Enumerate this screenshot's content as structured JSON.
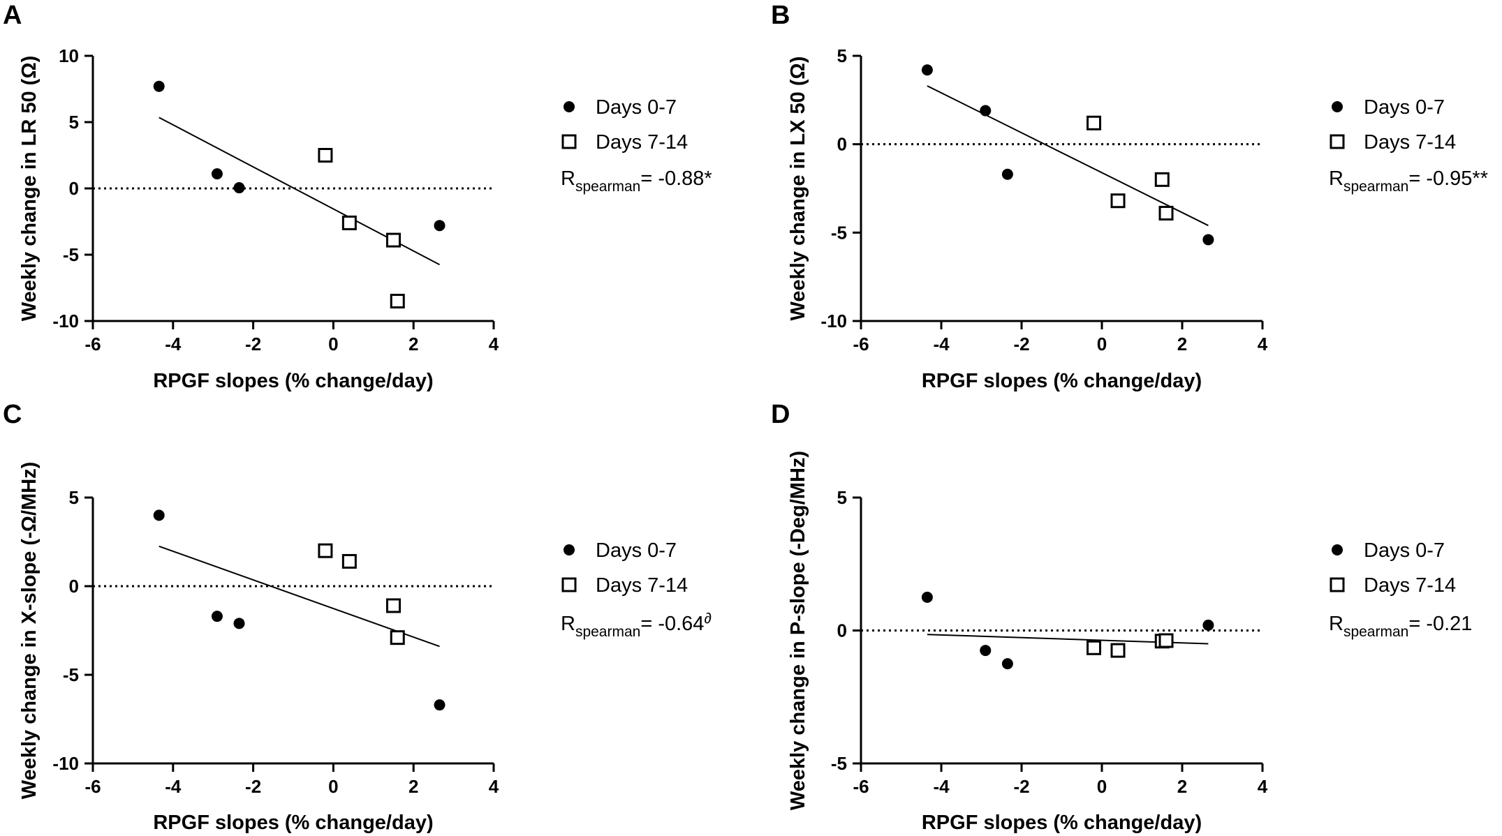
{
  "chart_data": [
    {
      "panel_label": "A",
      "type": "scatter",
      "xlabel": "RPGF slopes (% change/day)",
      "ylabel": "Weekly change in LR 50 (Ω)",
      "xlim": [
        -6,
        4
      ],
      "ylim": [
        -10,
        10
      ],
      "xticks": [
        -6,
        -4,
        -2,
        0,
        2,
        4
      ],
      "yticks": [
        -10,
        -5,
        0,
        5,
        10
      ],
      "series": [
        {
          "name": "Days 0-7",
          "marker": "filled-circle",
          "x": [
            -4.35,
            -2.9,
            -2.35,
            2.65
          ],
          "y": [
            7.7,
            1.1,
            0.05,
            -2.8
          ]
        },
        {
          "name": "Days 7-14",
          "marker": "open-square",
          "x": [
            -0.2,
            0.4,
            1.5,
            1.6
          ],
          "y": [
            2.5,
            -2.6,
            -3.9,
            -8.5
          ]
        }
      ],
      "fit_line": {
        "x": [
          -4.35,
          2.65
        ],
        "y": [
          5.35,
          -5.75
        ]
      },
      "reference_line_y": 0,
      "stat": {
        "prefix": "R",
        "sub": "spearman",
        "value": "= -0.88*"
      }
    },
    {
      "panel_label": "B",
      "type": "scatter",
      "xlabel": "RPGF slopes (% change/day)",
      "ylabel": "Weekly change in LX 50 (Ω)",
      "xlim": [
        -6,
        4
      ],
      "ylim": [
        -10,
        5
      ],
      "xticks": [
        -6,
        -4,
        -2,
        0,
        2,
        4
      ],
      "yticks": [
        -10,
        -5,
        0,
        5
      ],
      "series": [
        {
          "name": "Days 0-7",
          "marker": "filled-circle",
          "x": [
            -4.35,
            -2.9,
            -2.35,
            2.65
          ],
          "y": [
            4.2,
            1.9,
            -1.7,
            -5.4
          ]
        },
        {
          "name": "Days 7-14",
          "marker": "open-square",
          "x": [
            -0.2,
            0.4,
            1.5,
            1.6
          ],
          "y": [
            1.2,
            -3.2,
            -2.0,
            -3.9
          ]
        }
      ],
      "fit_line": {
        "x": [
          -4.35,
          2.65
        ],
        "y": [
          3.3,
          -4.6
        ]
      },
      "reference_line_y": 0,
      "stat": {
        "prefix": "R",
        "sub": "spearman",
        "value": "= -0.95**"
      }
    },
    {
      "panel_label": "C",
      "type": "scatter",
      "xlabel": "RPGF slopes (% change/day)",
      "ylabel": "Weekly change in X-slope (-Ω/MHz)",
      "xlim": [
        -6,
        4
      ],
      "ylim": [
        -10,
        5
      ],
      "xticks": [
        -6,
        -4,
        -2,
        0,
        2,
        4
      ],
      "yticks": [
        -10,
        -5,
        0,
        5
      ],
      "series": [
        {
          "name": "Days 0-7",
          "marker": "filled-circle",
          "x": [
            -4.35,
            -2.9,
            -2.35,
            2.65
          ],
          "y": [
            4.0,
            -1.7,
            -2.1,
            -6.7
          ]
        },
        {
          "name": "Days 7-14",
          "marker": "open-square",
          "x": [
            -0.2,
            0.4,
            1.5,
            1.6
          ],
          "y": [
            2.0,
            1.4,
            -1.1,
            -2.9
          ]
        }
      ],
      "fit_line": {
        "x": [
          -4.35,
          2.65
        ],
        "y": [
          2.25,
          -3.4
        ]
      },
      "reference_line_y": 0,
      "stat": {
        "prefix": "R",
        "sub": "spearman",
        "value": "= -0.64",
        "sup": "∂"
      }
    },
    {
      "panel_label": "D",
      "type": "scatter",
      "xlabel": "RPGF slopes (% change/day)",
      "ylabel": "Weekly change in P-slope (-Deg/MHz)",
      "xlim": [
        -6,
        4
      ],
      "ylim": [
        -5,
        5
      ],
      "xticks": [
        -6,
        -4,
        -2,
        0,
        2,
        4
      ],
      "yticks": [
        -5,
        0,
        5
      ],
      "series": [
        {
          "name": "Days 0-7",
          "marker": "filled-circle",
          "x": [
            -4.35,
            -2.9,
            -2.35,
            2.65
          ],
          "y": [
            1.25,
            -0.75,
            -1.25,
            0.2
          ]
        },
        {
          "name": "Days 7-14",
          "marker": "open-square",
          "x": [
            -0.2,
            0.4,
            1.5,
            1.6
          ],
          "y": [
            -0.65,
            -0.75,
            -0.4,
            -0.38
          ]
        }
      ],
      "fit_line": {
        "x": [
          -4.35,
          2.65
        ],
        "y": [
          -0.15,
          -0.5
        ]
      },
      "reference_line_y": 0,
      "stat": {
        "prefix": "R",
        "sub": "spearman",
        "value": "= -0.21"
      }
    }
  ]
}
